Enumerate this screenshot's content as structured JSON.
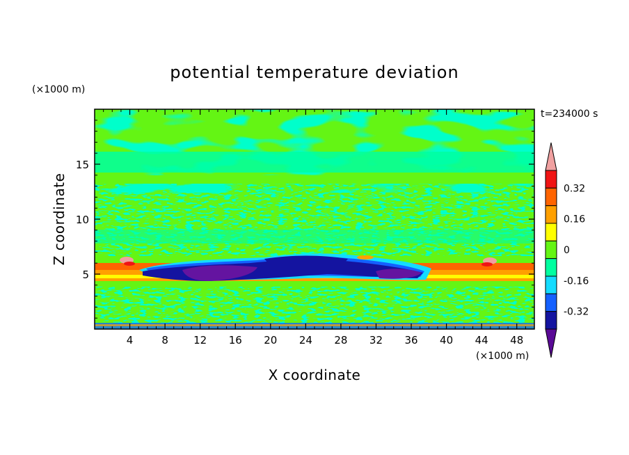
{
  "chart_data": {
    "type": "heatmap",
    "title": "potential temperature deviation",
    "xlabel": "X coordinate",
    "ylabel": "Z coordinate",
    "x_unit": "(×1000 m)",
    "y_unit": "(×1000 m)",
    "time_label": "t=234000 s",
    "xlim": [
      0,
      50
    ],
    "ylim": [
      0,
      20
    ],
    "x_ticks": [
      4,
      8,
      12,
      16,
      20,
      24,
      28,
      32,
      36,
      40,
      44,
      48
    ],
    "y_ticks": [
      5,
      10,
      15
    ],
    "colorbar": {
      "levels": [
        -0.4,
        -0.32,
        -0.24,
        -0.16,
        -0.08,
        0,
        0.08,
        0.16,
        0.24,
        0.32,
        0.4
      ],
      "labels": [
        "0.32",
        "0.16",
        "0",
        "-0.16",
        "-0.32"
      ],
      "label_values": [
        0.32,
        0.16,
        0,
        -0.16,
        -0.32
      ],
      "colors": [
        "#5a0a96",
        "#1414a0",
        "#1460ff",
        "#14dcff",
        "#00ffa0",
        "#64f514",
        "#ffff00",
        "#ffa000",
        "#ff6400",
        "#f01414",
        "#f0a0a0"
      ],
      "extend": "both"
    },
    "background_colors": {
      "deep_negative": "#6414a0",
      "negative": "#1414a0",
      "near_zero_low": "#00ffa0",
      "near_zero_high": "#64f514",
      "warm_layer": "#ffa000",
      "hot": "#f01414",
      "pink_extreme": "#f0a0a0"
    }
  }
}
